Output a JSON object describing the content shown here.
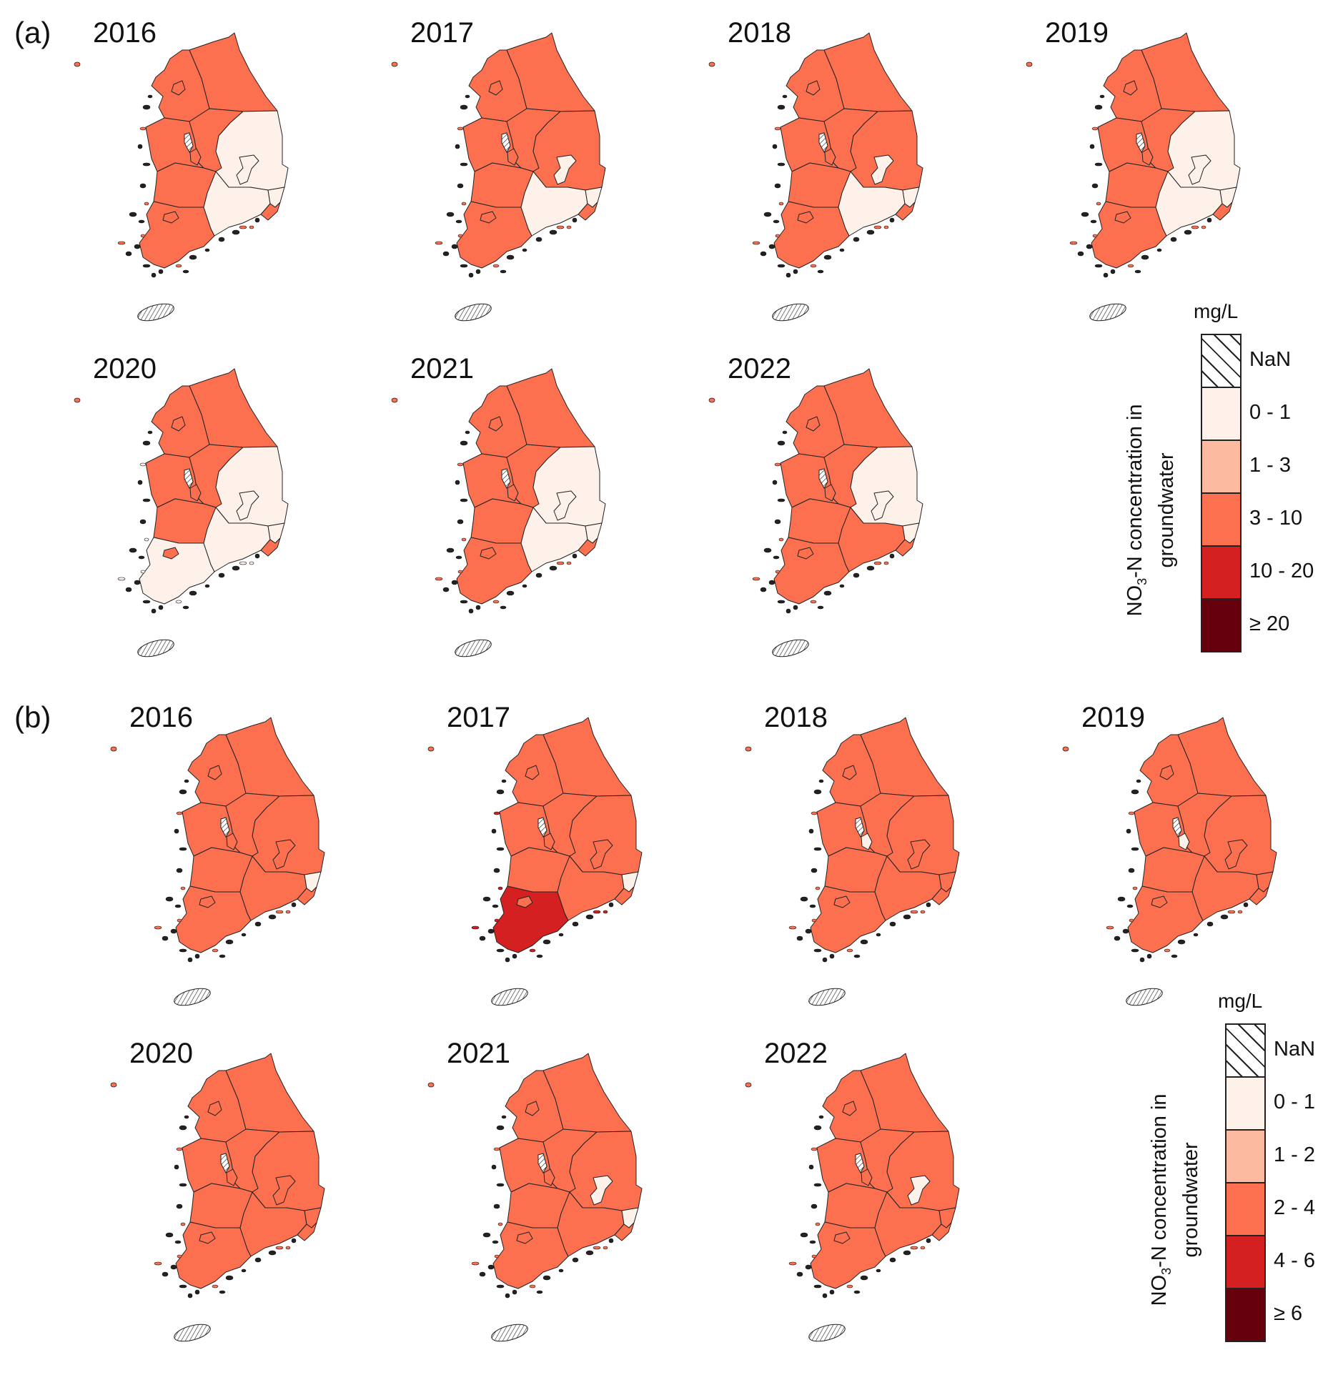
{
  "figure": {
    "parts": [
      {
        "label": "(a)",
        "legend": {
          "unit": "mg/L",
          "title_prefix": "NO",
          "title_sub": "3",
          "title_suffix": "-N concentration in",
          "title_line2": "groundwater",
          "classes": [
            "NaN",
            "0 - 1",
            "1 - 3",
            "3 - 10",
            "10 - 20",
            "≥ 20"
          ]
        },
        "panels": [
          {
            "year": "2016",
            "classes": {
              "GB": 1,
              "GN": 1,
              "Daegu": 1,
              "Ulsan": 1
            }
          },
          {
            "year": "2017",
            "classes": {
              "GN": 1,
              "Daegu": 1,
              "Ulsan": 1
            }
          },
          {
            "year": "2018",
            "classes": {
              "GN": 1,
              "Daegu": 1,
              "Ulsan": 1
            }
          },
          {
            "year": "2019",
            "classes": {
              "GB": 1,
              "GN": 1,
              "Daegu": 1,
              "Ulsan": 1
            }
          },
          {
            "year": "2020",
            "classes": {
              "GB": 1,
              "GN": 1,
              "JN": 1,
              "Daegu": 1,
              "Ulsan": 1
            }
          },
          {
            "year": "2021",
            "classes": {
              "GB": 1,
              "GN": 1,
              "Daegu": 1,
              "Ulsan": 1
            }
          },
          {
            "year": "2022",
            "classes": {
              "GB": 1,
              "Daegu": 1,
              "Ulsan": 1
            }
          }
        ]
      },
      {
        "label": "(b)",
        "legend": {
          "unit": "mg/L",
          "title_prefix": "NO",
          "title_sub": "3",
          "title_suffix": "-N concentration in",
          "title_line2": "groundwater",
          "classes": [
            "NaN",
            "0 - 1",
            "1 - 2",
            "2 - 4",
            "4 - 6",
            "≥ 6"
          ]
        },
        "panels": [
          {
            "year": "2016",
            "classes": {
              "CN": 3,
              "CB": 3,
              "Seoul": 3,
              "Busan": 3,
              "Ulsan": 1
            }
          },
          {
            "year": "2017",
            "classes": {
              "CB": 3,
              "Seoul": 3,
              "Daejeon": 3,
              "JN": 4,
              "Ulsan": 1
            }
          },
          {
            "year": "2018",
            "classes": {
              "GG": 3,
              "Seoul": 3,
              "CN": 3,
              "CB": 3,
              "JB": 3,
              "Daejeon": 1
            }
          },
          {
            "year": "2019",
            "classes": {
              "GG": 3,
              "Seoul": 3,
              "CN": 3,
              "CB": 3,
              "JB": 3,
              "Daejeon": 1
            }
          },
          {
            "year": "2020",
            "classes": {
              "GG": 3,
              "Seoul": 3,
              "CN": 3,
              "CB": 3,
              "JB": 3,
              "Busan": 3
            }
          },
          {
            "year": "2021",
            "classes": {
              "CB": 3,
              "Seoul": 3,
              "Daegu": 1,
              "Ulsan": 1
            }
          },
          {
            "year": "2022",
            "classes": {
              "Daegu": 1
            }
          }
        ]
      }
    ],
    "default_class": 3,
    "class_colors": [
      "hatch",
      "#fdf1ea",
      "#fcbba1",
      "#fc7050",
      "#d42020",
      "#67000d"
    ]
  }
}
